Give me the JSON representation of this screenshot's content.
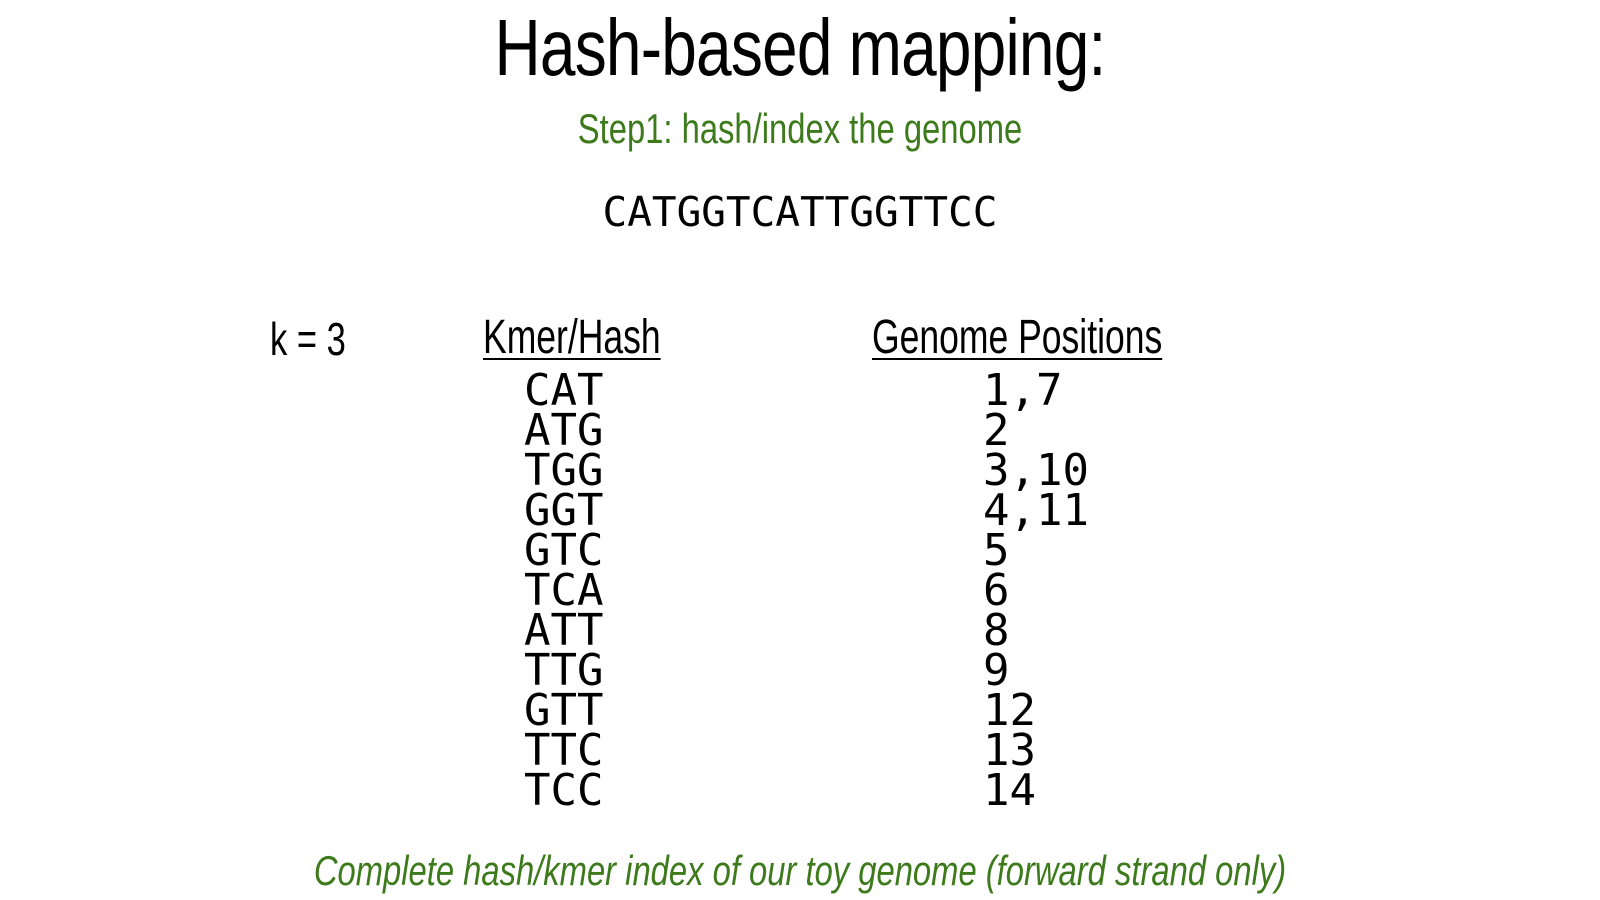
{
  "title": "Hash-based mapping:",
  "subtitle": "Step1: hash/index the genome",
  "genome_sequence": "CATGGTCATTGGTTCC",
  "k_label": "k = 3",
  "table": {
    "headers": {
      "kmer": "Kmer/Hash",
      "positions": "Genome Positions"
    },
    "rows": [
      {
        "kmer": "CAT",
        "positions": "1,7"
      },
      {
        "kmer": "ATG",
        "positions": "2"
      },
      {
        "kmer": "TGG",
        "positions": "3,10"
      },
      {
        "kmer": "GGT",
        "positions": "4,11"
      },
      {
        "kmer": "GTC",
        "positions": "5"
      },
      {
        "kmer": "TCA",
        "positions": "6"
      },
      {
        "kmer": "ATT",
        "positions": "8"
      },
      {
        "kmer": "TTG",
        "positions": "9"
      },
      {
        "kmer": "GTT",
        "positions": "12"
      },
      {
        "kmer": "TTC",
        "positions": "13"
      },
      {
        "kmer": "TCC",
        "positions": "14"
      }
    ]
  },
  "caption": "Complete hash/kmer index of our toy genome (forward strand only)",
  "colors": {
    "accent_green": "#3d7a1b",
    "text": "#000000",
    "background": "#ffffff"
  }
}
